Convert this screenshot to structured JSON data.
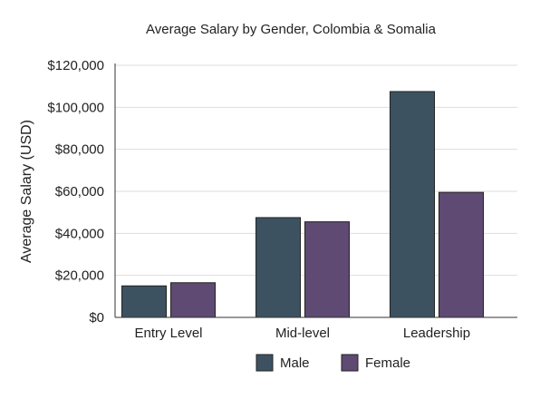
{
  "chart_data": {
    "type": "bar",
    "title": "Average Salary by Gender, Colombia & Somalia",
    "xlabel": "",
    "ylabel": "Average Salary (USD)",
    "categories": [
      "Entry Level",
      "Mid-level",
      "Leadership"
    ],
    "series": [
      {
        "name": "Male",
        "values": [
          15000,
          47500,
          107500
        ],
        "color": "#3d5261"
      },
      {
        "name": "Female",
        "values": [
          16500,
          45500,
          59500
        ],
        "color": "#5e4a73"
      }
    ],
    "ylim": [
      0,
      120000
    ],
    "yticks": [
      0,
      20000,
      40000,
      60000,
      80000,
      100000,
      120000
    ],
    "ytick_labels": [
      "$0",
      "$20,000",
      "$40,000",
      "$60,000",
      "$80,000",
      "$100,000",
      "$120,000"
    ],
    "grid": true,
    "legend_position": "bottom"
  }
}
